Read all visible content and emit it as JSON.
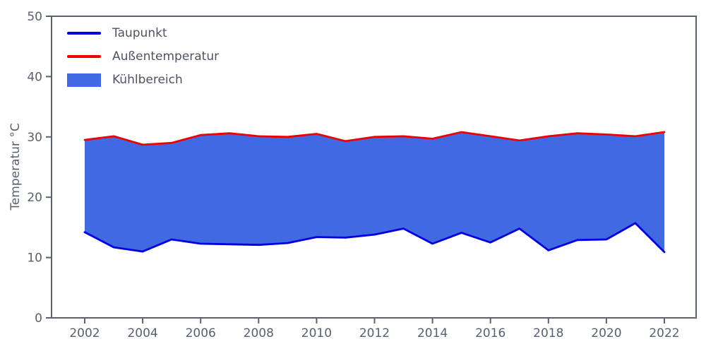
{
  "chart_data": {
    "type": "area",
    "title": "",
    "xlabel": "",
    "ylabel": "Temperatur °C",
    "ylim": [
      0,
      50
    ],
    "xlim": [
      2000.9,
      2023.1
    ],
    "grid": false,
    "legend_position": "upper-left",
    "axis_color": "#5a6270",
    "x": [
      2002,
      2003,
      2004,
      2005,
      2006,
      2007,
      2008,
      2009,
      2010,
      2011,
      2012,
      2013,
      2014,
      2015,
      2016,
      2017,
      2018,
      2019,
      2020,
      2021,
      2022
    ],
    "series": [
      {
        "name": "Taupunkt",
        "color": "#0000e0",
        "values": [
          14.2,
          11.7,
          11.0,
          13.0,
          12.3,
          12.2,
          12.1,
          12.4,
          13.4,
          13.3,
          13.8,
          14.8,
          12.3,
          14.1,
          12.5,
          14.8,
          11.2,
          12.9,
          13.0,
          15.7,
          10.9
        ]
      },
      {
        "name": "Außentemperatur",
        "color": "#ee0000",
        "values": [
          29.5,
          30.1,
          28.7,
          29.0,
          30.3,
          30.6,
          30.1,
          30.0,
          30.5,
          29.3,
          30.0,
          30.1,
          29.7,
          30.8,
          30.1,
          29.4,
          30.1,
          30.6,
          30.4,
          30.1,
          30.8
        ]
      }
    ],
    "fill_between": {
      "name": "Kühlbereich",
      "color": "#4169e1",
      "between": [
        "Taupunkt",
        "Außentemperatur"
      ]
    },
    "x_ticks": [
      2002,
      2004,
      2006,
      2008,
      2010,
      2012,
      2014,
      2016,
      2018,
      2020,
      2022
    ],
    "y_ticks": [
      0,
      10,
      20,
      30,
      40,
      50
    ]
  },
  "legend": {
    "items": [
      {
        "label": "Taupunkt",
        "kind": "line"
      },
      {
        "label": "Außentemperatur",
        "kind": "line"
      },
      {
        "label": "Kühlbereich",
        "kind": "patch"
      }
    ]
  }
}
